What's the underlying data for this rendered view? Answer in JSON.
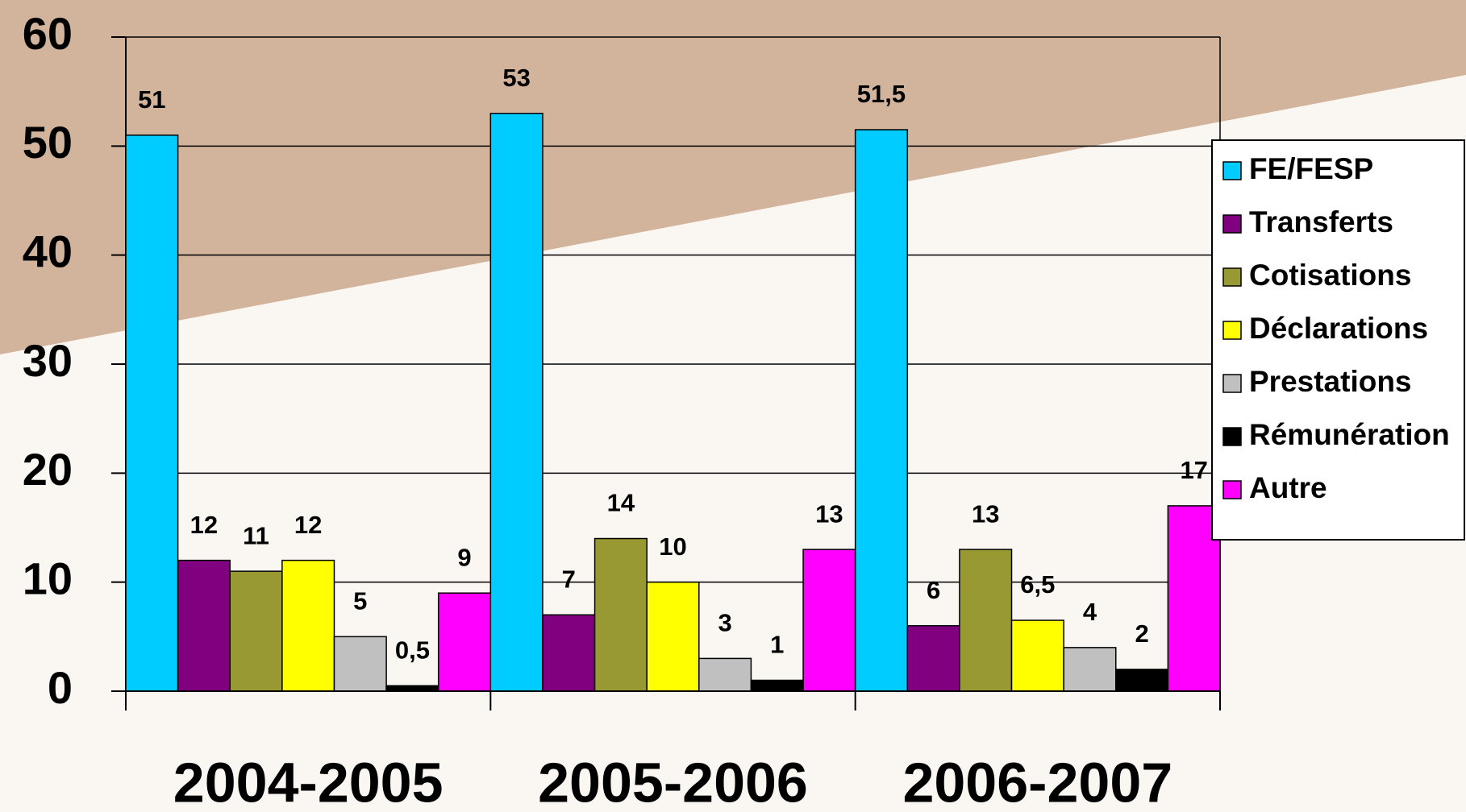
{
  "chart_data": {
    "type": "bar",
    "categories": [
      "2004-2005",
      "2005-2006",
      "2006-2007"
    ],
    "series": [
      {
        "name": "FE/FESP",
        "color": "#00ccff",
        "values": [
          51,
          53,
          51.5
        ],
        "value_labels": [
          "51",
          "53",
          "51,5"
        ]
      },
      {
        "name": "Transferts",
        "color": "#800080",
        "values": [
          12,
          7,
          6
        ],
        "value_labels": [
          "12",
          "7",
          "6"
        ]
      },
      {
        "name": "Cotisations",
        "color": "#999933",
        "values": [
          11,
          14,
          13
        ],
        "value_labels": [
          "11",
          "14",
          "13"
        ]
      },
      {
        "name": "Déclarations",
        "color": "#ffff00",
        "values": [
          12,
          10,
          6.5
        ],
        "value_labels": [
          "12",
          "10",
          "6,5"
        ]
      },
      {
        "name": "Prestations",
        "color": "#c0c0c0",
        "values": [
          5,
          3,
          4
        ],
        "value_labels": [
          "5",
          "3",
          "4"
        ]
      },
      {
        "name": "Rémunération",
        "color": "#000000",
        "values": [
          0.5,
          1,
          2
        ],
        "value_labels": [
          "0,5",
          "1",
          "2"
        ]
      },
      {
        "name": "Autre",
        "color": "#ff00ff",
        "values": [
          9,
          13,
          17
        ],
        "value_labels": [
          "9",
          "13",
          "17"
        ]
      }
    ],
    "ylim": [
      0,
      60
    ],
    "yticks": [
      0,
      10,
      20,
      30,
      40,
      50,
      60
    ],
    "grid": true,
    "legend": "right"
  }
}
